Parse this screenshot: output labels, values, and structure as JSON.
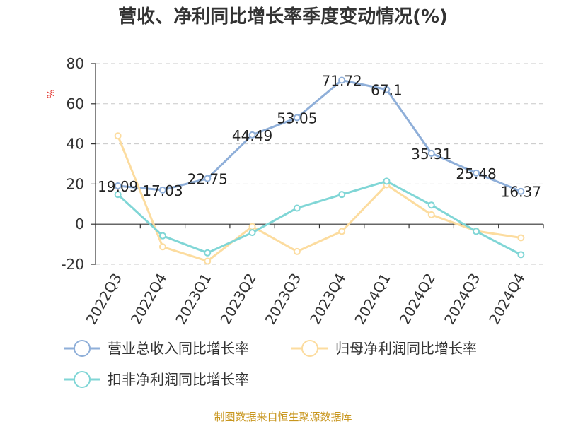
{
  "chart_data": {
    "type": "line",
    "title": "营收、净利同比增长率季度变动情况(%)",
    "ylabel": "%",
    "ylim": [
      -20,
      80
    ],
    "yticks": [
      80,
      60,
      40,
      20,
      0,
      -20
    ],
    "grid": true,
    "legend_position": "bottom",
    "categories": [
      "2022Q3",
      "2022Q4",
      "2023Q1",
      "2023Q2",
      "2023Q3",
      "2023Q4",
      "2024Q1",
      "2024Q2",
      "2024Q3",
      "2024Q4"
    ],
    "series": [
      {
        "name": "营业总收入同比增长率",
        "color": "#8fafd9",
        "values": [
          19.09,
          17.03,
          22.75,
          44.49,
          53.05,
          71.72,
          67.1,
          35.31,
          25.48,
          16.37
        ],
        "labels": [
          "19.09",
          "17.03",
          "22.75",
          "44.49",
          "53.05",
          "71.72",
          "67.1",
          "35.31",
          "25.48",
          "16.37"
        ]
      },
      {
        "name": "归母净利润同比增长率",
        "color": "#fcdc9f",
        "values": [
          44.0,
          -11.3,
          -18.4,
          -1.2,
          -13.6,
          -3.6,
          19.6,
          4.7,
          -3.4,
          -6.8
        ]
      },
      {
        "name": "扣非净利润同比增长率",
        "color": "#80d6d6",
        "values": [
          14.8,
          -5.8,
          -14.3,
          -4.2,
          8.0,
          14.8,
          21.4,
          9.5,
          -3.6,
          -15.2
        ]
      }
    ]
  },
  "source": "制图数据来自恒生聚源数据库"
}
